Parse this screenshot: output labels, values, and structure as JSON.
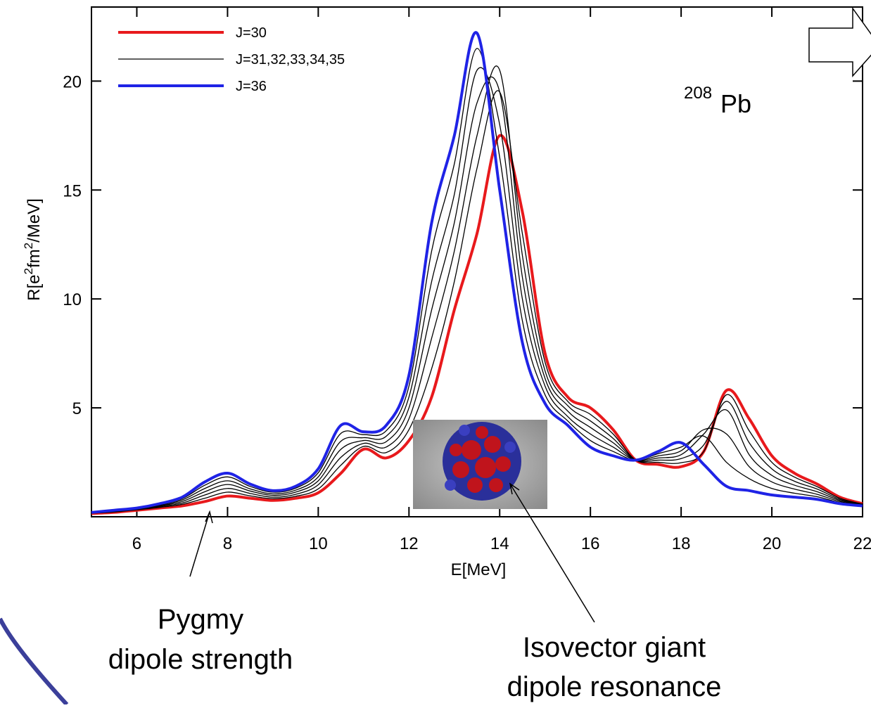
{
  "chart_data": {
    "type": "line",
    "x_label": "E[MeV]",
    "y_label": [
      "R[e",
      "2",
      "fm",
      "2",
      "/MeV]"
    ],
    "nucleus": {
      "mass": "208",
      "element": "Pb"
    },
    "annotations": [
      {
        "lines": [
          "Pygmy",
          "dipole strength"
        ]
      },
      {
        "lines": [
          "Isovector giant",
          "dipole resonance"
        ]
      }
    ],
    "xlim": [
      5,
      22
    ],
    "ylim": [
      0,
      23.4
    ],
    "xticks": [
      6,
      8,
      10,
      12,
      14,
      16,
      18,
      20,
      22
    ],
    "yticks": [
      5,
      10,
      15,
      20
    ],
    "legend": "top-left",
    "x": [
      5,
      5.5,
      6,
      6.5,
      7,
      7.5,
      8,
      8.5,
      9,
      9.5,
      10,
      10.5,
      11,
      11.5,
      12,
      12.5,
      13,
      13.5,
      14,
      14.5,
      15,
      15.5,
      16,
      16.5,
      17,
      17.5,
      18,
      18.5,
      19,
      19.5,
      20,
      20.5,
      21,
      21.5,
      22
    ],
    "series": [
      {
        "name": "J=30",
        "color": "#e8191c",
        "width": 4,
        "values": [
          0.15,
          0.2,
          0.3,
          0.4,
          0.5,
          0.7,
          0.95,
          0.85,
          0.75,
          0.85,
          1.1,
          2.0,
          3.1,
          2.7,
          3.5,
          5.5,
          9.5,
          13,
          17.5,
          14,
          7.5,
          5.5,
          5.0,
          4.0,
          2.6,
          2.4,
          2.3,
          3.0,
          5.8,
          4.5,
          2.8,
          2.0,
          1.5,
          0.9,
          0.6
        ]
      },
      {
        "name": "J=31,32,33,34,35",
        "color": "#000000",
        "width": 1.3,
        "values": [
          0.16,
          0.22,
          0.32,
          0.43,
          0.57,
          0.85,
          1.13,
          0.96,
          0.83,
          0.94,
          1.28,
          2.37,
          3.23,
          2.95,
          4.0,
          6.8,
          10.8,
          16,
          19.5,
          13,
          7.1,
          5.3,
          4.7,
          3.8,
          2.6,
          2.5,
          2.48,
          3.0,
          5.6,
          3.95,
          2.5,
          1.82,
          1.38,
          0.85,
          0.58
        ]
      },
      {
        "color": "#000000",
        "width": 1.3,
        "values": [
          0.17,
          0.23,
          0.33,
          0.47,
          0.63,
          1.0,
          1.3,
          1.07,
          0.9,
          1.03,
          1.47,
          2.73,
          3.37,
          3.2,
          4.5,
          8.2,
          12.2,
          17.5,
          20.5,
          12,
          6.7,
          5.1,
          4.4,
          3.6,
          2.6,
          2.6,
          2.67,
          3.3,
          5.3,
          3.4,
          2.2,
          1.63,
          1.27,
          0.8,
          0.57
        ]
      },
      {
        "color": "#000000",
        "width": 1.3,
        "values": [
          0.18,
          0.25,
          0.35,
          0.5,
          0.7,
          1.15,
          1.48,
          1.18,
          0.98,
          1.13,
          1.65,
          3.1,
          3.5,
          3.45,
          5.0,
          9.5,
          13.5,
          19,
          19.5,
          11,
          6.35,
          4.85,
          4.1,
          3.4,
          2.6,
          2.7,
          2.85,
          3.8,
          4.9,
          2.85,
          1.9,
          1.45,
          1.15,
          0.75,
          0.55
        ]
      },
      {
        "color": "#000000",
        "width": 1.3,
        "values": [
          0.18,
          0.27,
          0.37,
          0.53,
          0.77,
          1.3,
          1.65,
          1.28,
          1.05,
          1.22,
          1.83,
          3.47,
          3.63,
          3.7,
          5.5,
          10.8,
          14.8,
          20.5,
          18,
          10,
          6.0,
          4.6,
          3.8,
          3.2,
          2.6,
          2.8,
          3.03,
          4.0,
          3.8,
          2.3,
          1.6,
          1.27,
          1.03,
          0.7,
          0.53
        ]
      },
      {
        "color": "#000000",
        "width": 1.3,
        "values": [
          0.19,
          0.28,
          0.38,
          0.57,
          0.83,
          1.45,
          1.83,
          1.39,
          1.13,
          1.31,
          2.02,
          3.83,
          3.77,
          3.95,
          6.0,
          12.2,
          16.2,
          21.5,
          16.5,
          9,
          5.6,
          4.4,
          3.5,
          3.0,
          2.6,
          2.9,
          3.2,
          3.7,
          2.5,
          1.75,
          1.3,
          1.08,
          0.92,
          0.65,
          0.52
        ]
      },
      {
        "name": "J=36",
        "color": "#1f23e6",
        "width": 4,
        "values": [
          0.2,
          0.3,
          0.4,
          0.6,
          0.9,
          1.6,
          2.0,
          1.5,
          1.2,
          1.4,
          2.2,
          4.2,
          3.9,
          4.2,
          6.5,
          13.5,
          17.5,
          22.2,
          15,
          8,
          5.2,
          4.2,
          3.2,
          2.8,
          2.6,
          3.0,
          3.4,
          2.4,
          1.4,
          1.2,
          1.0,
          0.9,
          0.8,
          0.6,
          0.5
        ]
      }
    ]
  }
}
